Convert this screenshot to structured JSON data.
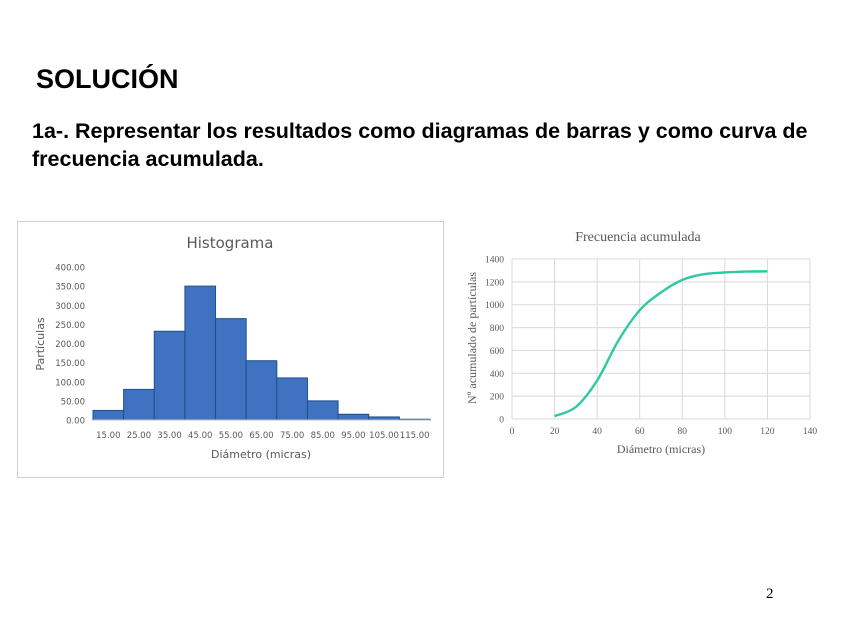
{
  "page": {
    "title": "SOLUCIÓN",
    "subtitle": "1a-. Representar los resultados como diagramas de barras y como curva de frecuencia acumulada.",
    "page_number": "2"
  },
  "colors": {
    "bar_fill": "#3f73c2",
    "bar_stroke": "#1f4e8c",
    "curve": "#2dc9a0",
    "grid": "#d9d9d9"
  },
  "chart_data": [
    {
      "type": "bar",
      "title": "Histograma",
      "xlabel": "Diámetro (micras)",
      "ylabel": "Partículas",
      "categories": [
        "15.00",
        "25.00",
        "35.00",
        "45.00",
        "55.00",
        "65.00",
        "75.00",
        "85.00",
        "95.00",
        "105.00",
        "115.00"
      ],
      "values": [
        25,
        80,
        232,
        350,
        265,
        155,
        110,
        50,
        15,
        8,
        2
      ],
      "ylim": [
        0,
        400
      ],
      "yticks": [
        "0.00",
        "50.00",
        "100.00",
        "150.00",
        "200.00",
        "250.00",
        "300.00",
        "350.00",
        "400.00"
      ],
      "grid": false
    },
    {
      "type": "line",
      "title": "Frecuencia acumulada",
      "xlabel": "Diámetro (micras)",
      "ylabel": "Nº acumulado de partículas",
      "x": [
        20,
        30,
        40,
        50,
        60,
        70,
        80,
        90,
        100,
        110,
        120
      ],
      "y": [
        25,
        105,
        337,
        687,
        952,
        1107,
        1217,
        1267,
        1282,
        1290,
        1292
      ],
      "xlim": [
        0,
        140
      ],
      "ylim": [
        0,
        1400
      ],
      "xticks": [
        "0",
        "20",
        "40",
        "60",
        "80",
        "100",
        "120",
        "140"
      ],
      "yticks": [
        "0",
        "200",
        "400",
        "600",
        "800",
        "1000",
        "1200",
        "1400"
      ],
      "grid": true,
      "smooth": true
    }
  ]
}
